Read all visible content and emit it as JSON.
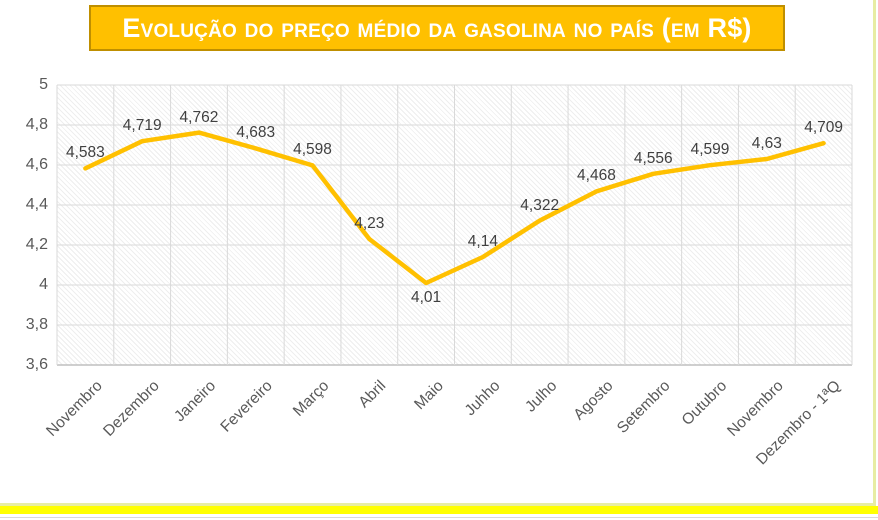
{
  "title": {
    "text": "Evolução do preço médio da gasolina no país (em R$)"
  },
  "colors": {
    "accent_gold": "#FFC000",
    "title_border": "#BF8F00",
    "frame_border": "#E7EDA3",
    "highlight_row": "#FFFF00",
    "gridline": "#D9D9D9",
    "axis_line": "#BFBFBF",
    "axis_text": "#595959",
    "data_label_text": "#404040"
  },
  "chart_data": {
    "type": "line",
    "title": "Evolução do preço médio da gasolina no país (em R$)",
    "categories": [
      "Novembro",
      "Dezembro",
      "Janeiro",
      "Fevereiro",
      "Março",
      "Abril",
      "Maio",
      "Juhho",
      "Julho",
      "Agosto",
      "Setembro",
      "Outubro",
      "Novembro",
      "Dezembro - 1ªQ"
    ],
    "values": [
      4.583,
      4.719,
      4.762,
      4.683,
      4.598,
      4.23,
      4.01,
      4.14,
      4.322,
      4.468,
      4.556,
      4.599,
      4.63,
      4.709
    ],
    "value_labels": [
      "4,583",
      "4,719",
      "4,762",
      "4,683",
      "4,598",
      "4,23",
      "4,01",
      "4,14",
      "4,322",
      "4,468",
      "4,556",
      "4,599",
      "4,63",
      "4,709"
    ],
    "label_position_below_indices": [
      6
    ],
    "xlabel": "",
    "ylabel": "",
    "ylim": [
      3.6,
      5
    ],
    "ytick_step": 0.2,
    "y_tick_labels": [
      "5",
      "4,8",
      "4,6",
      "4,4",
      "4,2",
      "4",
      "3,8",
      "3,6"
    ],
    "grid": true,
    "legend_position": "none",
    "series_color": "#FFC000"
  }
}
